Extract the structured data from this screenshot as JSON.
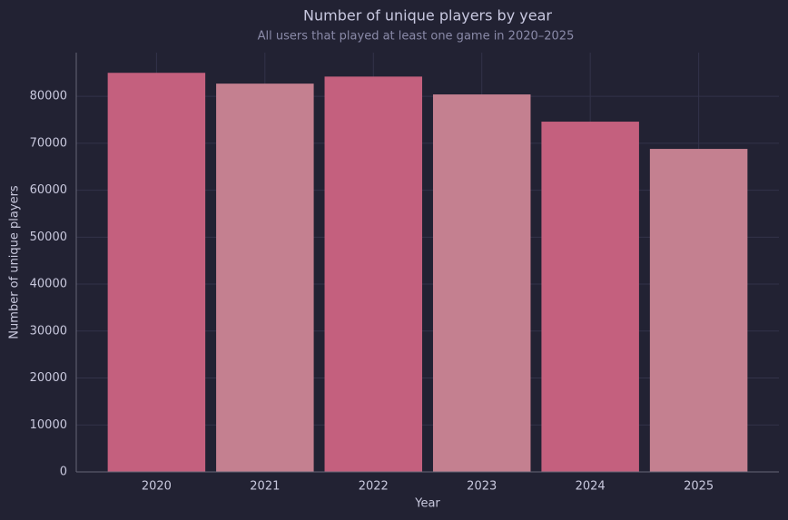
{
  "chart_data": {
    "type": "bar",
    "title": "Number of unique players by year",
    "subtitle": "All users that played at least one game in 2020–2025",
    "x_label": "Year",
    "y_label": "Number of unique players",
    "categories": [
      "2020",
      "2021",
      "2022",
      "2023",
      "2024",
      "2025"
    ],
    "values": [
      85000,
      82700,
      84200,
      80400,
      74600,
      68800
    ],
    "colors": [
      "#c4607e",
      "#c48090",
      "#c4607e",
      "#c48090",
      "#c4607e",
      "#c48090"
    ],
    "ylim": [
      0,
      89300
    ],
    "yticks": [
      0,
      10000,
      20000,
      30000,
      40000,
      50000,
      60000,
      70000,
      80000
    ],
    "grid": true
  }
}
